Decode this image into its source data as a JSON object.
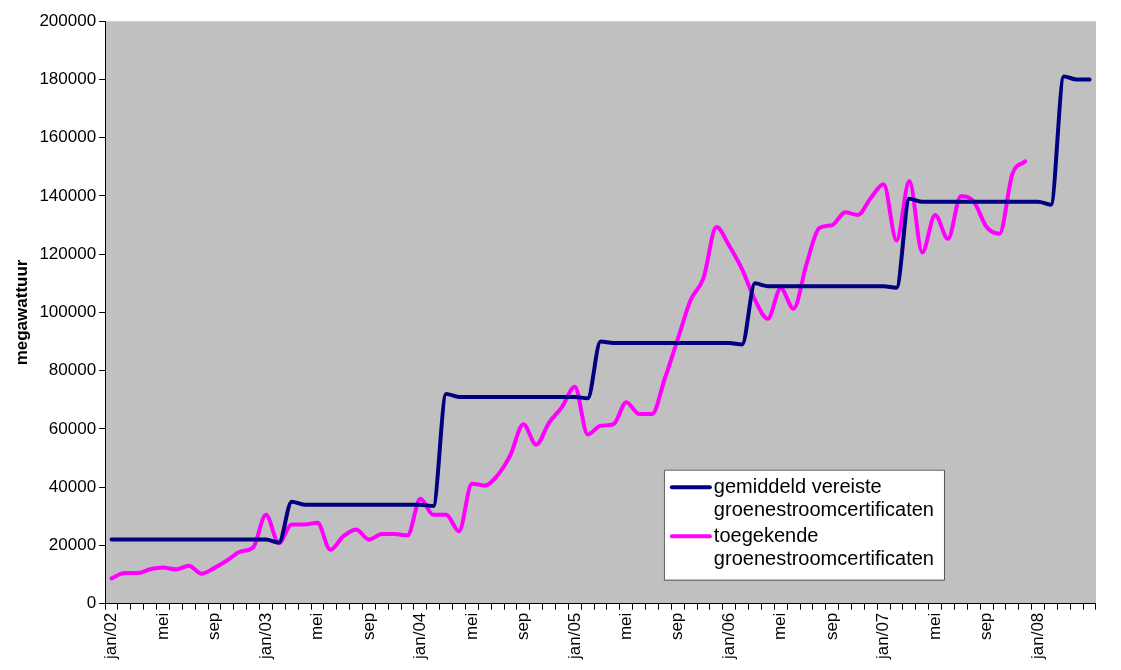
{
  "chart_data": {
    "type": "line",
    "ylabel": "megawattuur",
    "categories": [
      "jan/02",
      null,
      null,
      null,
      "mei",
      null,
      null,
      null,
      "sep",
      null,
      null,
      null,
      "jan/03",
      null,
      null,
      null,
      "mei",
      null,
      null,
      null,
      "sep",
      null,
      null,
      null,
      "jan/04",
      null,
      null,
      null,
      "mei",
      null,
      null,
      null,
      "sep",
      null,
      null,
      null,
      "jan/05",
      null,
      null,
      null,
      "mei",
      null,
      null,
      null,
      "sep",
      null,
      null,
      null,
      "jan/06",
      null,
      null,
      null,
      "mei",
      null,
      null,
      null,
      "sep",
      null,
      null,
      null,
      "jan/07",
      null,
      null,
      null,
      "mei",
      null,
      null,
      null,
      "sep",
      null,
      null,
      null,
      "jan/08",
      null,
      null,
      null,
      null
    ],
    "series": [
      {
        "name": "gemiddeld vereiste groenestroomcertificaten",
        "color": "#000080",
        "values": [
          22000,
          22000,
          22000,
          22000,
          22000,
          22000,
          22000,
          22000,
          22000,
          22000,
          22000,
          22000,
          22000,
          21000,
          35000,
          34000,
          34000,
          34000,
          34000,
          34000,
          34000,
          34000,
          34000,
          34000,
          34000,
          33500,
          72000,
          71000,
          71000,
          71000,
          71000,
          71000,
          71000,
          71000,
          71000,
          71000,
          71000,
          70500,
          90000,
          89500,
          89500,
          89500,
          89500,
          89500,
          89500,
          89500,
          89500,
          89500,
          89500,
          89000,
          110000,
          109000,
          109000,
          109000,
          109000,
          109000,
          109000,
          109000,
          109000,
          109000,
          109000,
          108500,
          139000,
          138000,
          138000,
          138000,
          138000,
          138000,
          138000,
          138000,
          138000,
          138000,
          138000,
          137000,
          181000,
          180000,
          180000
        ]
      },
      {
        "name": "toegekende groenestroomcertificaten",
        "color": "#ff00ff",
        "values": [
          8700,
          10500,
          10500,
          11800,
          12400,
          11800,
          13000,
          10300,
          12300,
          14900,
          17900,
          19300,
          30500,
          20800,
          27200,
          27200,
          27800,
          18500,
          23100,
          25500,
          22000,
          23900,
          23900,
          23500,
          36000,
          30500,
          30500,
          24900,
          41200,
          40600,
          44100,
          51100,
          61600,
          54600,
          62200,
          67500,
          74500,
          58100,
          61100,
          61600,
          69200,
          65100,
          65100,
          77400,
          90800,
          104300,
          111800,
          129300,
          122900,
          114800,
          104300,
          97800,
          108300,
          101300,
          116500,
          129000,
          130000,
          134400,
          133500,
          139300,
          144000,
          124700,
          145100,
          120600,
          133500,
          125300,
          139900,
          138100,
          129300,
          127000,
          147500,
          151900,
          null,
          null,
          null,
          null,
          null
        ]
      }
    ],
    "ylim": [
      0,
      200000
    ],
    "yticks": [
      0,
      20000,
      40000,
      60000,
      80000,
      100000,
      120000,
      140000,
      160000,
      180000,
      200000
    ],
    "grid": false,
    "legend": "bottom right",
    "marker": "none",
    "line_style": "solid"
  }
}
